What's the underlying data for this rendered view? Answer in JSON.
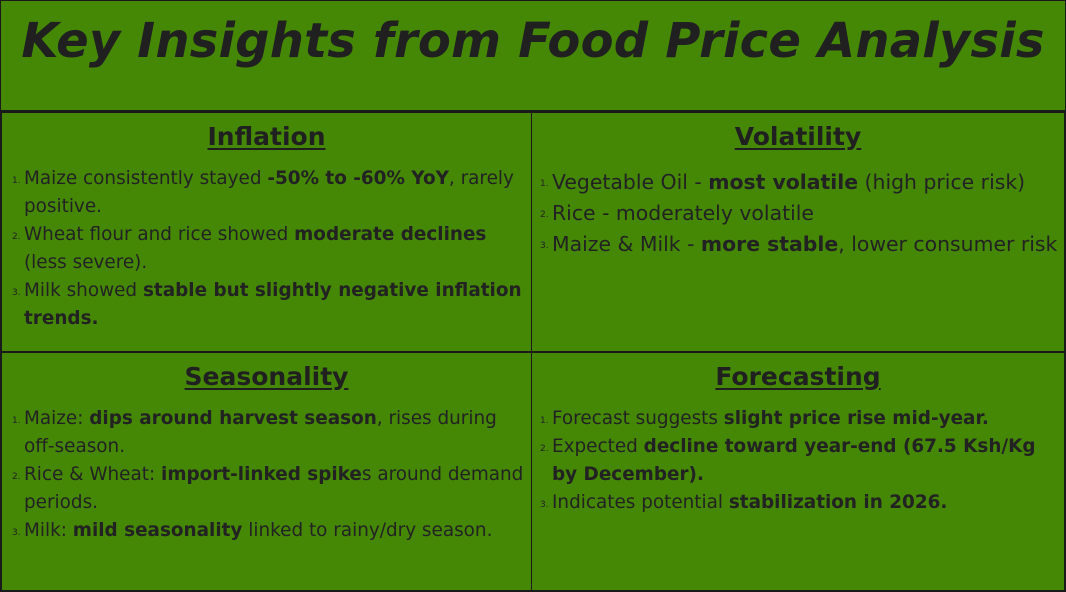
{
  "title": "Key Insights from Food Price Analysis",
  "inflation": {
    "heading": "Inflation",
    "items": [
      {
        "t1": "Maize consistently stayed ",
        "b1": "-50% to -60% YoY",
        "t2": ", rarely positive.",
        "b2": "",
        "t3": ""
      },
      {
        "t1": "Wheat flour and rice showed ",
        "b1": "moderate declines",
        "t2": " (less severe).",
        "b2": "",
        "t3": ""
      },
      {
        "t1": "Milk showed ",
        "b1": "stable but slightly negative inflation trends.",
        "t2": "",
        "b2": "",
        "t3": ""
      }
    ]
  },
  "volatility": {
    "heading": "Volatility",
    "items": [
      {
        "t1": "Vegetable Oil  - ",
        "b1": "most volatile",
        "t2": " (high price risk)",
        "b2": "",
        "t3": ""
      },
      {
        "t1": "Rice - moderately volatile",
        "b1": "",
        "t2": "",
        "b2": "",
        "t3": ""
      },
      {
        "t1": "Maize & Milk - ",
        "b1": "more stable",
        "t2": ", lower consumer risk",
        "b2": "",
        "t3": ""
      }
    ]
  },
  "seasonality": {
    "heading": "Seasonality",
    "items": [
      {
        "t1": "Maize: ",
        "b1": "dips around harvest season",
        "t2": ", rises during off-season.",
        "b2": "",
        "t3": ""
      },
      {
        "t1": "Rice & Wheat: ",
        "b1": "import-linked spike",
        "t2": "s around demand periods.",
        "b2": "",
        "t3": ""
      },
      {
        "t1": "Milk: ",
        "b1": "mild seasonality",
        "t2": " linked to rainy/dry season.",
        "b2": "",
        "t3": ""
      }
    ]
  },
  "forecasting": {
    "heading": "Forecasting",
    "items": [
      {
        "t1": "Forecast suggests ",
        "b1": "slight price rise mid-year.",
        "t2": "",
        "b2": "",
        "t3": ""
      },
      {
        "t1": "Expected ",
        "b1": "decline toward year-end (67.5 Ksh/Kg by December).",
        "t2": "",
        "b2": "",
        "t3": ""
      },
      {
        "t1": "Indicates potential ",
        "b1": "stabilization in 2026.",
        "t2": "",
        "b2": "",
        "t3": ""
      }
    ]
  }
}
